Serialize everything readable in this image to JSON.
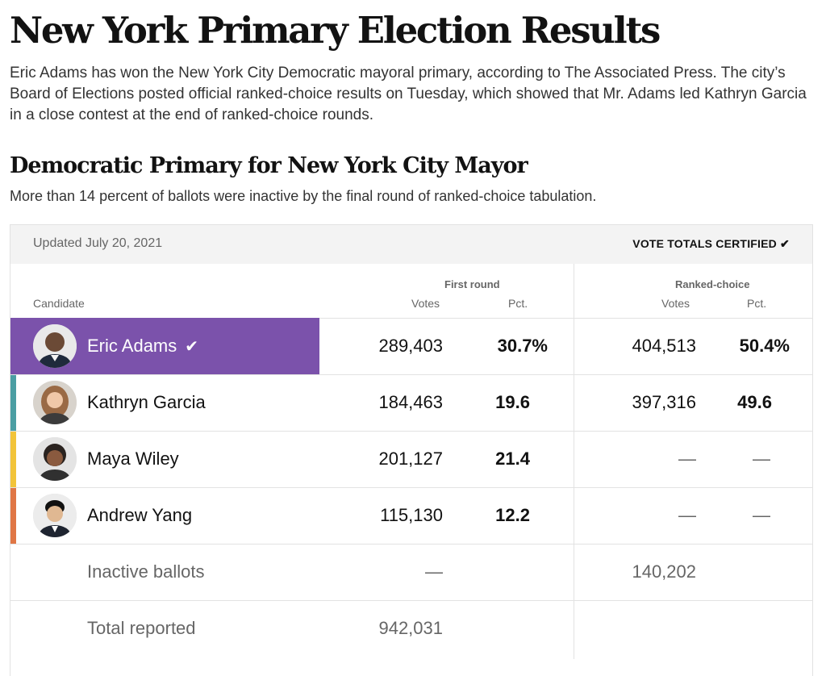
{
  "headline": "New York Primary Election Results",
  "dek": "Eric Adams has won the New York City Democratic mayoral primary, according to The Associated Press. The city’s Board of Elections posted official ranked-choice results on Tuesday, which showed that Mr. Adams led Kathryn Garcia in a close contest at the end of ranked-choice rounds.",
  "race": {
    "title": "Democratic Primary for New York City Mayor",
    "subtitle": "More than 14 percent of ballots were inactive by the final round of ranked-choice tabulation."
  },
  "table": {
    "updated": "Updated July 20, 2021",
    "certified": "VOTE TOTALS CERTIFIED ✔",
    "headers": {
      "candidate": "Candidate",
      "first_round": "First round",
      "ranked_choice": "Ranked-choice",
      "votes": "Votes",
      "pct": "Pct."
    },
    "candidates": [
      {
        "name": "Eric Adams",
        "winner_mark": "✔",
        "first_votes": "289,403",
        "first_pct": "30.7%",
        "rc_votes": "404,513",
        "rc_pct": "50.4%",
        "party_color": "#7b52ab",
        "avatar": "eric-adams-avatar"
      },
      {
        "name": "Kathryn Garcia",
        "first_votes": "184,463",
        "first_pct": "19.6",
        "rc_votes": "397,316",
        "rc_pct": "49.6",
        "party_color": "#4b9ea3",
        "avatar": "kathryn-garcia-avatar"
      },
      {
        "name": "Maya Wiley",
        "first_votes": "201,127",
        "first_pct": "21.4",
        "rc_votes": "—",
        "rc_pct": "—",
        "party_color": "#f2c43a",
        "avatar": "maya-wiley-avatar"
      },
      {
        "name": "Andrew Yang",
        "first_votes": "115,130",
        "first_pct": "12.2",
        "rc_votes": "—",
        "rc_pct": "—",
        "party_color": "#e07645",
        "avatar": "andrew-yang-avatar"
      }
    ],
    "inactive": {
      "label": "Inactive ballots",
      "first_votes": "—",
      "rc_votes": "140,202"
    },
    "total": {
      "label": "Total reported",
      "first_votes": "942,031"
    }
  }
}
